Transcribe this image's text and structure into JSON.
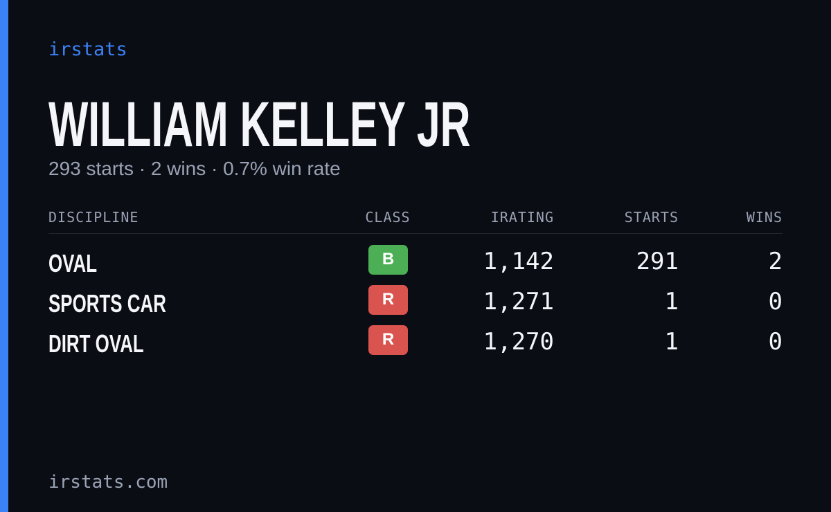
{
  "header": {
    "brand": "irstats",
    "name": "WILLIAM KELLEY JR",
    "summary": "293 starts · 2 wins · 0.7% win rate"
  },
  "table": {
    "columns": [
      "DISCIPLINE",
      "CLASS",
      "IRATING",
      "STARTS",
      "WINS"
    ],
    "rows": [
      {
        "discipline": "OVAL",
        "class": "B",
        "class_color": "#4caf56",
        "irating": "1,142",
        "starts": "291",
        "wins": "2"
      },
      {
        "discipline": "SPORTS CAR",
        "class": "R",
        "class_color": "#d9534f",
        "irating": "1,271",
        "starts": "1",
        "wins": "0"
      },
      {
        "discipline": "DIRT OVAL",
        "class": "R",
        "class_color": "#d9534f",
        "irating": "1,270",
        "starts": "1",
        "wins": "0"
      }
    ]
  },
  "footer": {
    "site": "irstats.com"
  }
}
